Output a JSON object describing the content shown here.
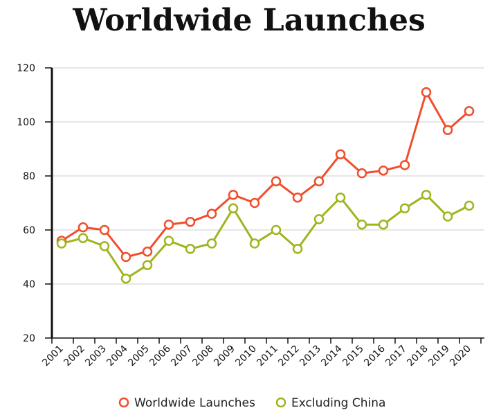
{
  "chart_data": {
    "type": "line",
    "title": "Worldwide Launches",
    "xlabel": "",
    "ylabel": "",
    "categories": [
      "2001",
      "2002",
      "2003",
      "2004",
      "2005",
      "2006",
      "2007",
      "2008",
      "2009",
      "2010",
      "2011",
      "2012",
      "2013",
      "2014",
      "2015",
      "2016",
      "2017",
      "2018",
      "2019",
      "2020"
    ],
    "ylim": [
      20,
      120
    ],
    "yticks": [
      20,
      40,
      60,
      80,
      100,
      120
    ],
    "grid": true,
    "legend_position": "bottom",
    "series": [
      {
        "name": "Worldwide Launches",
        "color": "#f04e2b",
        "values": [
          56,
          61,
          60,
          50,
          52,
          62,
          63,
          66,
          73,
          70,
          78,
          72,
          78,
          88,
          81,
          82,
          84,
          111,
          97,
          104
        ]
      },
      {
        "name": "Excluding China",
        "color": "#a0b41e",
        "values": [
          55,
          57,
          54,
          42,
          47,
          56,
          53,
          55,
          68,
          55,
          60,
          53,
          64,
          72,
          62,
          62,
          68,
          73,
          65,
          69
        ]
      }
    ]
  }
}
